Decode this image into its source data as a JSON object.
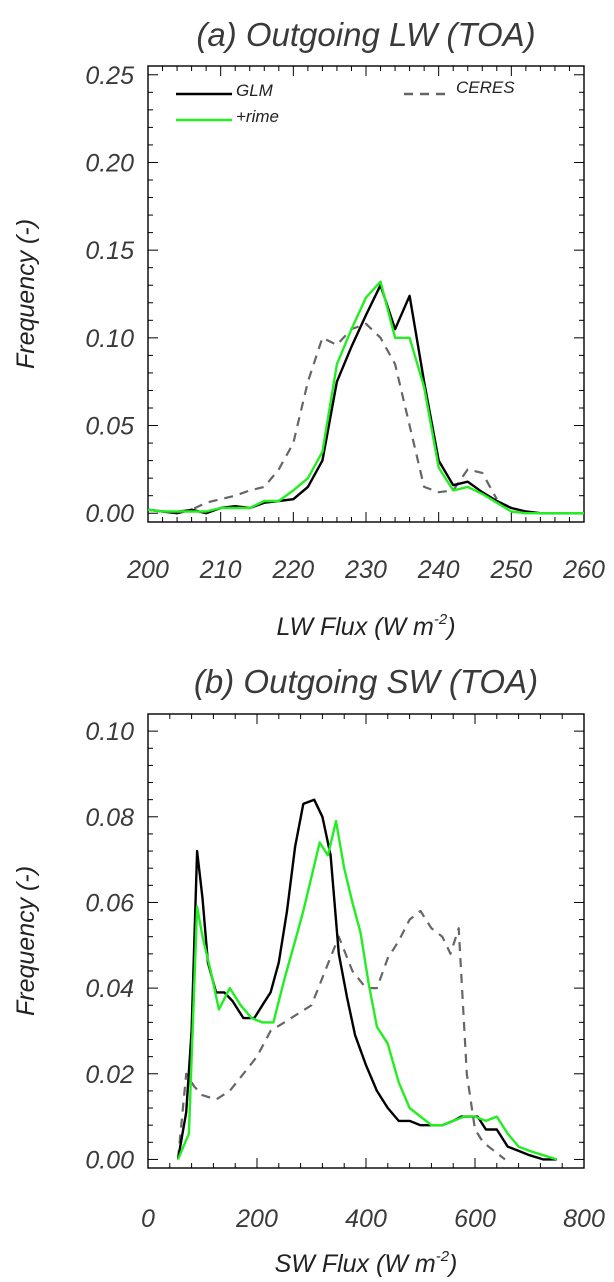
{
  "chart_data": [
    {
      "type": "line",
      "title": "(a)  Outgoing LW (TOA)",
      "xlabel": "LW Flux (W m",
      "xlabel_sup": "-2",
      "xlabel_close": ")",
      "ylabel": "Frequency (-)",
      "xlim": [
        200,
        260
      ],
      "ylim": [
        -0.005,
        0.255
      ],
      "xticks": [
        "200",
        "210",
        "220",
        "230",
        "240",
        "250",
        "260"
      ],
      "yticks": [
        "0.00",
        "0.05",
        "0.10",
        "0.15",
        "0.20",
        "0.25"
      ],
      "grid": false,
      "legend": "top",
      "series": [
        {
          "name": "GLM",
          "color": "#000000",
          "dash": "solid",
          "x": [
            200,
            202,
            204,
            206,
            208,
            210,
            212,
            214,
            216,
            218,
            220,
            222,
            224,
            226,
            228,
            230,
            232,
            234,
            236,
            238,
            240,
            242,
            244,
            246,
            248,
            250,
            252,
            254,
            256,
            258,
            260
          ],
          "y": [
            0.002,
            0.001,
            0.0,
            0.002,
            0.0,
            0.003,
            0.004,
            0.003,
            0.006,
            0.007,
            0.008,
            0.015,
            0.03,
            0.075,
            0.095,
            0.113,
            0.13,
            0.105,
            0.124,
            0.075,
            0.03,
            0.016,
            0.018,
            0.012,
            0.007,
            0.003,
            0.001,
            0.0,
            0.0,
            0.0,
            0.0
          ]
        },
        {
          "name": "+rime",
          "color": "#22ee22",
          "dash": "solid",
          "x": [
            200,
            202,
            204,
            206,
            208,
            210,
            212,
            214,
            216,
            218,
            220,
            222,
            224,
            226,
            228,
            230,
            232,
            234,
            236,
            238,
            240,
            242,
            244,
            246,
            248,
            250,
            252,
            254,
            256,
            258,
            260
          ],
          "y": [
            0.002,
            0.001,
            0.001,
            0.001,
            0.001,
            0.003,
            0.003,
            0.003,
            0.007,
            0.007,
            0.013,
            0.02,
            0.035,
            0.085,
            0.105,
            0.123,
            0.132,
            0.1,
            0.1,
            0.072,
            0.026,
            0.013,
            0.015,
            0.011,
            0.006,
            0.001,
            0.0,
            0.0,
            0.0,
            0.0,
            0.0
          ]
        },
        {
          "name": "CERES",
          "color": "#666666",
          "dash": "dashed",
          "x": [
            202,
            204,
            206,
            208,
            210,
            212,
            214,
            216,
            218,
            220,
            222,
            224,
            226,
            228,
            230,
            232,
            234,
            236,
            238,
            240,
            242,
            244,
            246,
            248
          ],
          "y": [
            0.001,
            0.001,
            0.002,
            0.006,
            0.008,
            0.01,
            0.013,
            0.015,
            0.025,
            0.04,
            0.075,
            0.1,
            0.096,
            0.105,
            0.108,
            0.1,
            0.085,
            0.05,
            0.015,
            0.012,
            0.013,
            0.025,
            0.023,
            0.008
          ]
        }
      ]
    },
    {
      "type": "line",
      "title": "(b)  Outgoing SW (TOA)",
      "xlabel": "SW Flux (W m",
      "xlabel_sup": "-2",
      "xlabel_close": ")",
      "ylabel": "Frequency (-)",
      "xlim": [
        0,
        800
      ],
      "ylim": [
        -0.002,
        0.104
      ],
      "xticks": [
        "0",
        "200",
        "400",
        "600",
        "800"
      ],
      "yticks": [
        "0.00",
        "0.02",
        "0.04",
        "0.06",
        "0.08",
        "0.10"
      ],
      "grid": false,
      "series": [
        {
          "name": "GLM",
          "color": "#000000",
          "dash": "solid",
          "x": [
            55,
            70,
            80,
            90,
            100,
            110,
            125,
            140,
            155,
            175,
            195,
            210,
            225,
            240,
            255,
            270,
            285,
            305,
            320,
            335,
            350,
            365,
            380,
            400,
            420,
            440,
            460,
            480,
            500,
            520,
            540,
            560,
            575,
            590,
            605,
            620,
            640,
            660,
            680,
            700,
            725,
            750
          ],
          "y": [
            0.0,
            0.011,
            0.03,
            0.072,
            0.061,
            0.046,
            0.039,
            0.039,
            0.037,
            0.033,
            0.033,
            0.036,
            0.039,
            0.046,
            0.058,
            0.073,
            0.083,
            0.084,
            0.08,
            0.071,
            0.048,
            0.038,
            0.029,
            0.022,
            0.016,
            0.012,
            0.009,
            0.009,
            0.008,
            0.008,
            0.008,
            0.009,
            0.01,
            0.01,
            0.01,
            0.007,
            0.007,
            0.003,
            0.002,
            0.001,
            0.0,
            0.0
          ]
        },
        {
          "name": "+rime",
          "color": "#22ee22",
          "dash": "solid",
          "x": [
            55,
            75,
            90,
            100,
            115,
            130,
            150,
            170,
            190,
            210,
            230,
            250,
            270,
            285,
            300,
            315,
            330,
            345,
            360,
            375,
            390,
            405,
            420,
            440,
            460,
            480,
            500,
            520,
            540,
            560,
            580,
            600,
            620,
            640,
            660,
            680,
            700,
            725,
            750
          ],
          "y": [
            0.0,
            0.006,
            0.059,
            0.052,
            0.044,
            0.035,
            0.04,
            0.036,
            0.033,
            0.032,
            0.032,
            0.042,
            0.051,
            0.058,
            0.066,
            0.074,
            0.071,
            0.079,
            0.068,
            0.06,
            0.053,
            0.041,
            0.031,
            0.027,
            0.018,
            0.012,
            0.01,
            0.008,
            0.008,
            0.009,
            0.01,
            0.01,
            0.009,
            0.01,
            0.006,
            0.003,
            0.002,
            0.001,
            0.0
          ]
        },
        {
          "name": "CERES",
          "color": "#666666",
          "dash": "dashed",
          "x": [
            55,
            70,
            85,
            100,
            125,
            150,
            175,
            200,
            225,
            250,
            275,
            300,
            325,
            350,
            375,
            400,
            420,
            440,
            460,
            480,
            500,
            520,
            540,
            555,
            570,
            585,
            600,
            615,
            635,
            655
          ],
          "y": [
            0.0,
            0.02,
            0.017,
            0.015,
            0.014,
            0.016,
            0.02,
            0.024,
            0.03,
            0.032,
            0.034,
            0.036,
            0.044,
            0.052,
            0.044,
            0.04,
            0.04,
            0.047,
            0.051,
            0.056,
            0.058,
            0.054,
            0.052,
            0.048,
            0.054,
            0.02,
            0.007,
            0.004,
            0.002,
            0.0
          ]
        }
      ]
    }
  ]
}
